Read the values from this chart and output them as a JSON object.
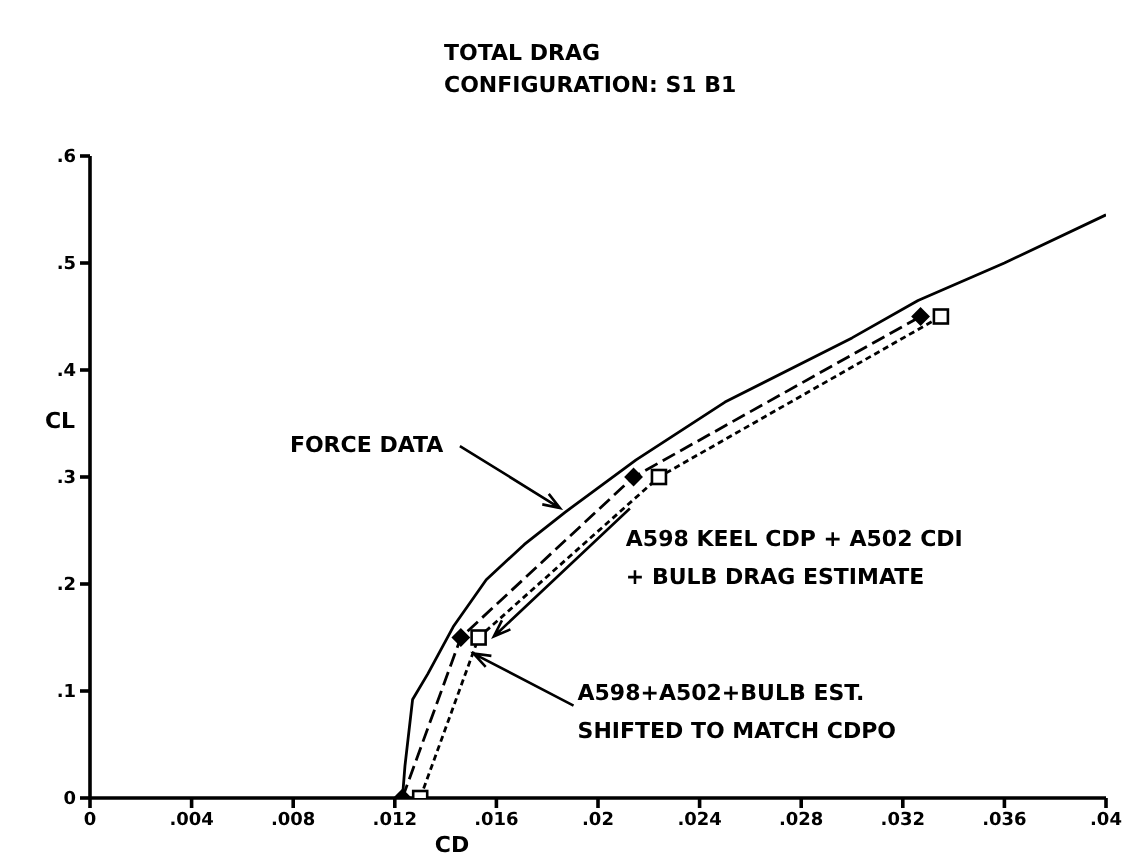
{
  "chart_data": {
    "type": "line",
    "title": "TOTAL DRAG",
    "subtitle": "CONFIGURATION: S1 B1",
    "xlabel": "CD",
    "ylabel": "CL",
    "xlim": [
      0,
      0.04
    ],
    "ylim": [
      0,
      0.6
    ],
    "xticks": [
      0,
      {
        "value": 0.004,
        "label": ".004"
      },
      {
        "value": 0.008,
        "label": ".008"
      },
      {
        "value": 0.012,
        "label": ".012"
      },
      {
        "value": 0.016,
        "label": ".016"
      },
      {
        "value": 0.02,
        "label": ".02"
      },
      {
        "value": 0.024,
        "label": ".024"
      },
      {
        "value": 0.028,
        "label": ".028"
      },
      {
        "value": 0.032,
        "label": ".032"
      },
      {
        "value": 0.036,
        "label": ".036"
      },
      {
        "value": 0.04,
        "label": ".04"
      }
    ],
    "yticks": [
      0,
      {
        "value": 0.1,
        "label": ".1"
      },
      {
        "value": 0.2,
        "label": ".2"
      },
      {
        "value": 0.3,
        "label": ".3"
      },
      {
        "value": 0.4,
        "label": ".4"
      },
      {
        "value": 0.5,
        "label": ".5"
      },
      {
        "value": 0.6,
        "label": ".6"
      }
    ],
    "grid": false,
    "series": [
      {
        "color": "#000000",
        "line_style": "solid",
        "marker": "none",
        "x": [
          0.0123,
          0.0124,
          0.0127,
          0.0133,
          0.0143,
          0.0156,
          0.0171,
          0.0187,
          0.0215,
          0.025,
          0.03,
          0.0326,
          0.036,
          0.04
        ],
        "values": [
          0,
          0.03,
          0.092,
          0.116,
          0.16,
          0.204,
          0.237,
          0.267,
          0.316,
          0.37,
          0.43,
          0.465,
          0.5,
          0.545
        ]
      },
      {
        "color": "#000000",
        "line_style": "dashed",
        "marker": "diamond",
        "x": [
          0.0123,
          0.0146,
          0.0214,
          0.0327
        ],
        "values": [
          0,
          0.15,
          0.3,
          0.45
        ]
      },
      {
        "color": "#000000",
        "line_style": "dotted",
        "marker": "square",
        "x": [
          0.013,
          0.0153,
          0.0224,
          0.0335
        ],
        "values": [
          0,
          0.15,
          0.3,
          0.45
        ]
      }
    ],
    "annotations": [
      {
        "text": "FORCE DATA",
        "x": 0.0185,
        "y": 0.271
      },
      {
        "text": "A598 KEEL CDP + A502 CDI\n+ BULB DRAG ESTIMATE",
        "x": 0.0159,
        "y": 0.151
      },
      {
        "text": "A598+A502+BULB EST.\nSHIFTED TO MATCH CDPO",
        "x": 0.0151,
        "y": 0.135
      }
    ]
  }
}
